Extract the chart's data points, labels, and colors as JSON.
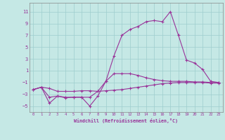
{
  "background_color": "#c5e8e5",
  "grid_color": "#9ecece",
  "line_color": "#993399",
  "xlabel": "Windchill (Refroidissement éolien,°C)",
  "xlim": [
    -0.5,
    23.5
  ],
  "ylim": [
    -6.0,
    12.5
  ],
  "xticks": [
    0,
    1,
    2,
    3,
    4,
    5,
    6,
    7,
    8,
    9,
    10,
    11,
    12,
    13,
    14,
    15,
    16,
    17,
    18,
    19,
    20,
    21,
    22,
    23
  ],
  "yticks": [
    -5,
    -3,
    -1,
    1,
    3,
    5,
    7,
    9,
    11
  ],
  "curve_a_x": [
    0,
    1,
    2,
    3,
    4,
    5,
    6,
    7,
    8,
    9,
    10,
    11,
    12,
    13,
    14,
    15,
    16,
    17,
    18,
    19,
    20,
    21,
    22,
    23
  ],
  "curve_a_y": [
    -2.2,
    -1.8,
    -2.0,
    -2.5,
    -2.5,
    -2.5,
    -2.4,
    -2.4,
    -2.5,
    -2.4,
    -2.3,
    -2.2,
    -2.0,
    -1.8,
    -1.6,
    -1.4,
    -1.2,
    -1.1,
    -1.0,
    -1.0,
    -1.0,
    -1.0,
    -1.1,
    -1.1
  ],
  "curve_b_x": [
    0,
    1,
    2,
    3,
    4,
    5,
    6,
    7,
    8,
    9,
    10,
    11,
    12,
    13,
    14,
    15,
    16,
    17,
    18,
    19,
    20,
    21,
    22,
    23
  ],
  "curve_b_y": [
    -2.2,
    -1.8,
    -4.5,
    -3.3,
    -3.6,
    -3.5,
    -3.5,
    -5.0,
    -3.3,
    -0.8,
    3.5,
    7.0,
    8.0,
    8.5,
    9.3,
    9.5,
    9.3,
    11.0,
    7.0,
    2.8,
    2.3,
    1.2,
    -0.8,
    -1.0
  ],
  "curve_c_x": [
    0,
    1,
    2,
    3,
    4,
    5,
    6,
    7,
    8,
    9,
    10,
    11,
    12,
    13,
    14,
    15,
    16,
    17,
    18,
    19,
    20,
    21,
    22,
    23
  ],
  "curve_c_y": [
    -2.2,
    -1.8,
    -3.5,
    -3.3,
    -3.5,
    -3.5,
    -3.5,
    -3.5,
    -2.5,
    -0.8,
    0.5,
    0.5,
    0.5,
    0.2,
    -0.2,
    -0.5,
    -0.7,
    -0.8,
    -0.8,
    -0.8,
    -0.9,
    -0.9,
    -1.0,
    -1.0
  ]
}
